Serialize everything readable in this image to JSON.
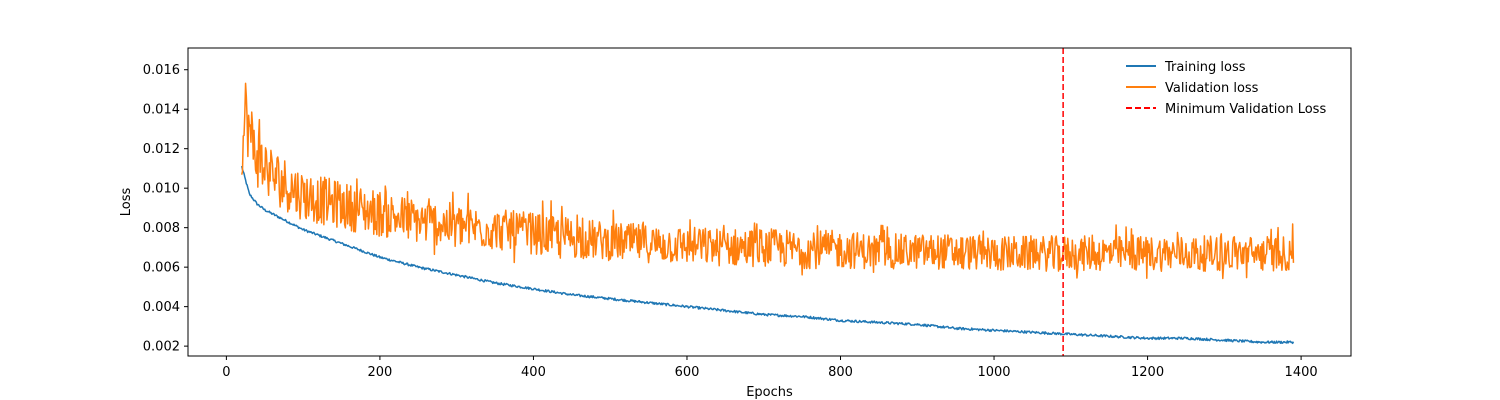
{
  "chart_data": {
    "type": "line",
    "xlabel": "Epochs",
    "ylabel": "Loss",
    "xlim": [
      -50,
      1465
    ],
    "ylim": [
      0.0015,
      0.0171
    ],
    "xticks": [
      0,
      200,
      400,
      600,
      800,
      1000,
      1200,
      1400
    ],
    "xtick_labels": [
      "0",
      "200",
      "400",
      "600",
      "800",
      "1000",
      "1200",
      "1400"
    ],
    "yticks": [
      0.002,
      0.004,
      0.006,
      0.008,
      0.01,
      0.012,
      0.014,
      0.016
    ],
    "ytick_labels": [
      "0.002",
      "0.004",
      "0.006",
      "0.008",
      "0.010",
      "0.012",
      "0.014",
      "0.016"
    ],
    "grid": false,
    "legend_position": "top-right",
    "series": [
      {
        "name": "Training loss",
        "color": "#1f77b4",
        "style": "solid",
        "x": [
          20,
          25,
          30,
          40,
          50,
          60,
          80,
          100,
          150,
          200,
          250,
          300,
          350,
          400,
          450,
          500,
          550,
          600,
          650,
          700,
          750,
          800,
          850,
          900,
          950,
          1000,
          1050,
          1100,
          1150,
          1200,
          1250,
          1300,
          1350,
          1390
        ],
        "values": [
          0.0111,
          0.0104,
          0.0097,
          0.0092,
          0.0089,
          0.0087,
          0.0083,
          0.0079,
          0.0072,
          0.0065,
          0.006,
          0.0056,
          0.0052,
          0.0049,
          0.0046,
          0.0044,
          0.0042,
          0.004,
          0.0038,
          0.0036,
          0.0035,
          0.0033,
          0.0032,
          0.0031,
          0.0029,
          0.0028,
          0.0027,
          0.0026,
          0.0025,
          0.0024,
          0.0024,
          0.0023,
          0.0022,
          0.0022
        ]
      },
      {
        "name": "Validation loss",
        "color": "#ff7f0e",
        "style": "solid",
        "x": [
          20,
          25,
          30,
          40,
          50,
          60,
          80,
          100,
          150,
          200,
          250,
          300,
          350,
          400,
          450,
          500,
          550,
          600,
          650,
          700,
          750,
          800,
          850,
          900,
          950,
          1000,
          1050,
          1100,
          1150,
          1200,
          1250,
          1300,
          1350,
          1390
        ],
        "values": [
          0.011,
          0.014,
          0.0125,
          0.0115,
          0.011,
          0.0105,
          0.01,
          0.0095,
          0.009,
          0.0086,
          0.0082,
          0.008,
          0.0078,
          0.0076,
          0.0074,
          0.0072,
          0.0071,
          0.007,
          0.0069,
          0.0069,
          0.0068,
          0.0068,
          0.0067,
          0.0067,
          0.0067,
          0.0066,
          0.0066,
          0.0066,
          0.0066,
          0.0066,
          0.0066,
          0.0066,
          0.0066,
          0.0066
        ],
        "noise_amplitude": [
          0.001,
          0.002,
          0.0025,
          0.0022,
          0.002,
          0.0019,
          0.0018,
          0.0017,
          0.0016,
          0.0016,
          0.0015,
          0.0015,
          0.0014,
          0.0014,
          0.0014,
          0.0013,
          0.0013,
          0.0013,
          0.0013,
          0.0013,
          0.0013,
          0.0013,
          0.0012,
          0.0012,
          0.0012,
          0.0012,
          0.0012,
          0.0012,
          0.0012,
          0.0012,
          0.0012,
          0.0012,
          0.0012,
          0.0012
        ]
      }
    ],
    "vline": {
      "name": "Minimum Validation Loss",
      "x": 1090,
      "color": "#ff0000",
      "style": "dashed"
    }
  }
}
